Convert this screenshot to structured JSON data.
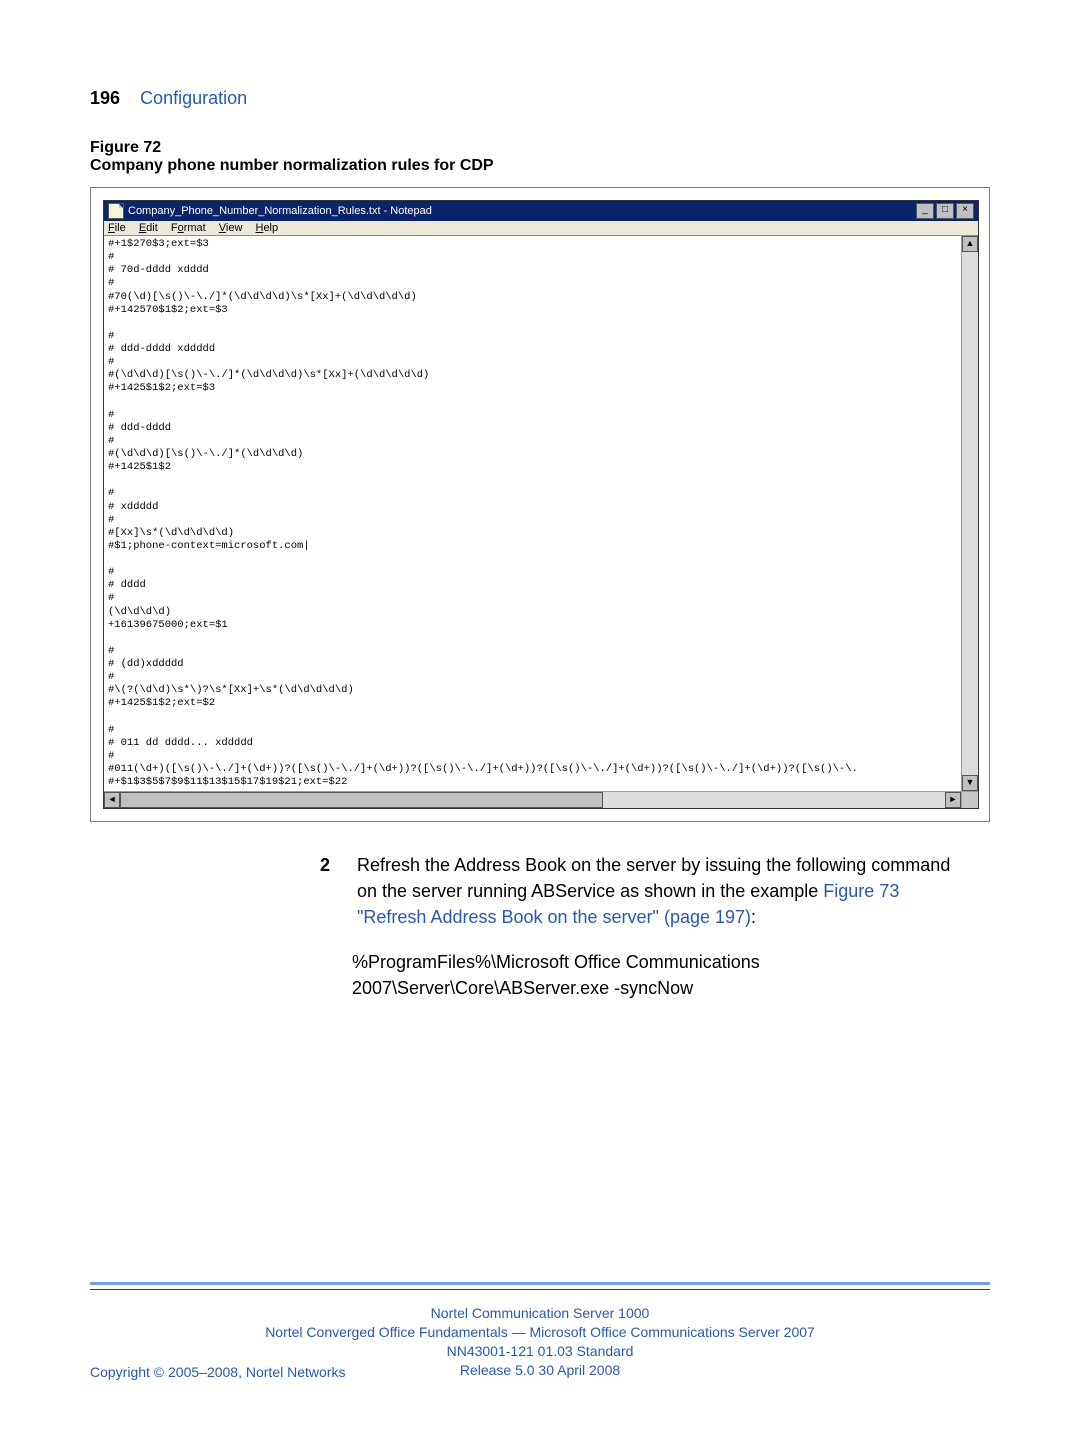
{
  "page": {
    "number": "196",
    "section": "Configuration"
  },
  "figure": {
    "label": "Figure 72",
    "title": "Company phone number normalization rules for CDP"
  },
  "notepad": {
    "title": "Company_Phone_Number_Normalization_Rules.txt - Notepad",
    "menu": {
      "file": "File",
      "edit": "Edit",
      "format": "Format",
      "view": "View",
      "help": "Help"
    },
    "content": "#+1$270$3;ext=$3\n#\n# 70d-dddd xdddd\n#\n#70(\\d)[\\s()\\-\\./]*(\\d\\d\\d\\d)\\s*[Xx]+(\\d\\d\\d\\d\\d)\n#+142570$1$2;ext=$3\n\n#\n# ddd-dddd xddddd\n#\n#(\\d\\d\\d)[\\s()\\-\\./]*(\\d\\d\\d\\d)\\s*[Xx]+(\\d\\d\\d\\d\\d)\n#+1425$1$2;ext=$3\n\n#\n# ddd-dddd\n#\n#(\\d\\d\\d)[\\s()\\-\\./]*(\\d\\d\\d\\d)\n#+1425$1$2\n\n#\n# xddddd\n#\n#[Xx]\\s*(\\d\\d\\d\\d\\d)\n#$1;phone-context=microsoft.com|\n\n#\n# dddd\n#\n(\\d\\d\\d\\d)\n+16139675000;ext=$1\n\n#\n# (dd)xddddd\n#\n#\\(?(\\d\\d)\\s*\\)?\\s*[Xx]+\\s*(\\d\\d\\d\\d\\d)\n#+1425$1$2;ext=$2\n\n#\n# 011 dd dddd... xddddd\n#\n#011(\\d+)([\\s()\\-\\./]+(\\d+))?([\\s()\\-\\./]+(\\d+))?([\\s()\\-\\./]+(\\d+))?([\\s()\\-\\./]+(\\d+))?([\\s()\\-\\./]+(\\d+))?([\\s()\\-\\.\n#+$1$3$5$7$9$11$13$15$17$19$21;ext=$22\n"
  },
  "step": {
    "number": "2",
    "text_a": "Refresh the Address Book on the server by issuing the following command on the server running ABService as shown in the example ",
    "link": "Figure 73 \"Refresh Address Book on the server\" (page 197)",
    "colon": ":"
  },
  "command": "%ProgramFiles%\\Microsoft Office Communications 2007\\Server\\Core\\ABServer.exe -syncNow",
  "footer": {
    "l1": "Nortel Communication Server 1000",
    "l2": "Nortel Converged Office Fundamentals — Microsoft Office Communications Server 2007",
    "l3": "NN43001-121   01.03   Standard",
    "l4": "Release 5.0   30 April 2008",
    "copyright": "Copyright © 2005–2008, Nortel Networks"
  }
}
